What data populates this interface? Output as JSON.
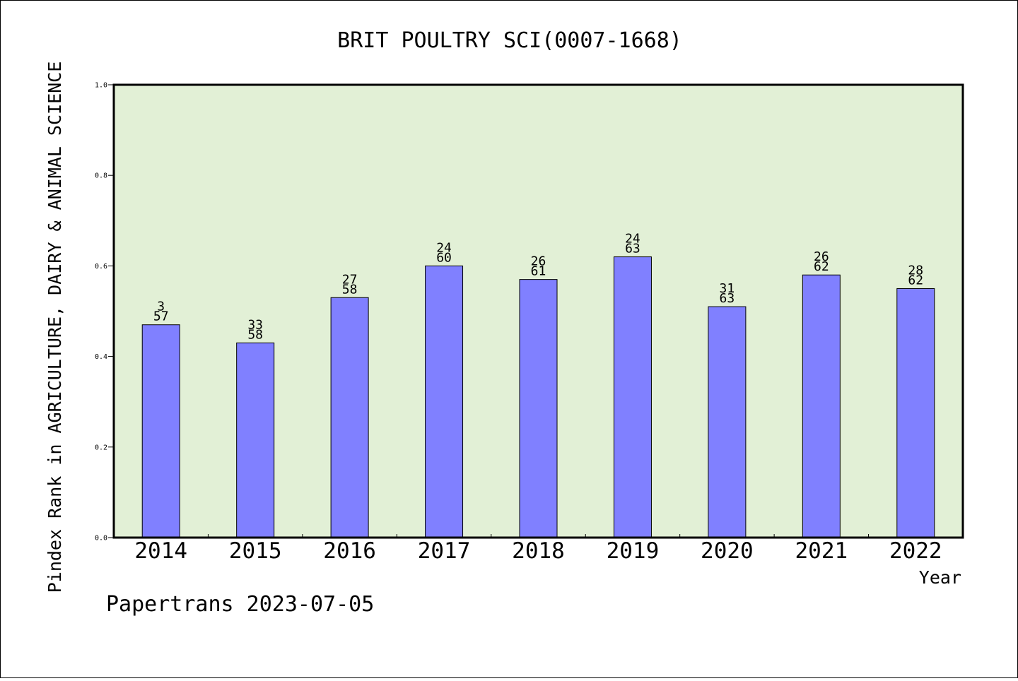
{
  "chart_data": {
    "type": "bar",
    "title": "BRIT POULTRY SCI(0007-1668)",
    "xlabel": "Year",
    "ylabel": "Pindex Rank in AGRICULTURE, DAIRY & ANIMAL SCIENCE",
    "ylim": [
      0,
      1.0
    ],
    "yticks": [
      "0.0",
      "0.2",
      "0.4",
      "0.6",
      "0.8",
      "1.0"
    ],
    "categories": [
      "2014",
      "2015",
      "2016",
      "2017",
      "2018",
      "2019",
      "2020",
      "2021",
      "2022"
    ],
    "values": [
      0.47,
      0.43,
      0.53,
      0.6,
      0.57,
      0.62,
      0.51,
      0.58,
      0.55
    ],
    "rank_labels": [
      "3",
      "33",
      "27",
      "24",
      "26",
      "24",
      "31",
      "26",
      "28"
    ],
    "total_labels": [
      "57",
      "58",
      "58",
      "60",
      "61",
      "63",
      "63",
      "62",
      "62"
    ],
    "grid": false,
    "legend": "none",
    "bar_color": "#8080ff",
    "plot_background": "#e2f0d6"
  },
  "footer": "Papertrans 2023-07-05"
}
